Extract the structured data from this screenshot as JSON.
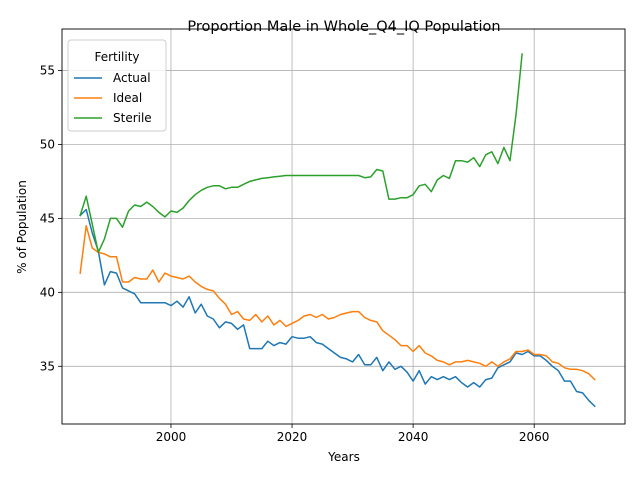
{
  "chart_data": {
    "type": "line",
    "title": "Proportion Male in Whole_Q4_IQ Population",
    "xlabel": "Years",
    "ylabel": "% of Population",
    "xlim": [
      1982,
      2075
    ],
    "ylim": [
      31.1,
      57.8
    ],
    "xticks": [
      2000,
      2020,
      2040,
      2060
    ],
    "yticks": [
      35,
      40,
      45,
      50,
      55
    ],
    "grid": true,
    "legend": {
      "title": "Fertility",
      "placement": "upper left"
    },
    "series": [
      {
        "name": "Actual",
        "color": "#1f77b4",
        "x": [
          1985,
          1986,
          1987,
          1988,
          1989,
          1990,
          1991,
          1992,
          1993,
          1994,
          1995,
          1996,
          1997,
          1998,
          1999,
          2000,
          2001,
          2002,
          2003,
          2004,
          2005,
          2006,
          2007,
          2008,
          2009,
          2010,
          2011,
          2012,
          2013,
          2014,
          2015,
          2016,
          2017,
          2018,
          2019,
          2020,
          2021,
          2022,
          2023,
          2024,
          2025,
          2026,
          2027,
          2028,
          2029,
          2030,
          2031,
          2032,
          2033,
          2034,
          2035,
          2036,
          2037,
          2038,
          2039,
          2040,
          2041,
          2042,
          2043,
          2044,
          2045,
          2046,
          2047,
          2048,
          2049,
          2050,
          2051,
          2052,
          2053,
          2054,
          2055,
          2056,
          2057,
          2058,
          2059,
          2060,
          2061,
          2062,
          2063,
          2064,
          2065,
          2066,
          2067,
          2068,
          2069,
          2070
        ],
        "y": [
          45.2,
          45.6,
          44.0,
          42.8,
          40.5,
          41.4,
          41.3,
          40.3,
          40.1,
          39.9,
          39.3,
          39.3,
          39.3,
          39.3,
          39.3,
          39.1,
          39.4,
          39.0,
          39.7,
          38.6,
          39.2,
          38.4,
          38.2,
          37.6,
          38.0,
          37.9,
          37.5,
          37.8,
          36.2,
          36.2,
          36.2,
          36.7,
          36.4,
          36.6,
          36.5,
          37.0,
          36.9,
          36.9,
          37.0,
          36.6,
          36.5,
          36.2,
          35.9,
          35.6,
          35.5,
          35.3,
          35.8,
          35.1,
          35.1,
          35.6,
          34.7,
          35.3,
          34.8,
          35.0,
          34.6,
          34.0,
          34.7,
          33.8,
          34.3,
          34.1,
          34.3,
          34.1,
          34.3,
          33.9,
          33.6,
          33.9,
          33.6,
          34.1,
          34.2,
          34.9,
          35.1,
          35.3,
          35.9,
          35.8,
          36.0,
          35.7,
          35.7,
          35.4,
          35.0,
          34.7,
          34.0,
          34.0,
          33.3,
          33.2,
          32.7,
          32.3
        ]
      },
      {
        "name": "Ideal",
        "color": "#ff7f0e",
        "x": [
          1985,
          1986,
          1987,
          1988,
          1989,
          1990,
          1991,
          1992,
          1993,
          1994,
          1995,
          1996,
          1997,
          1998,
          1999,
          2000,
          2001,
          2002,
          2003,
          2004,
          2005,
          2006,
          2007,
          2008,
          2009,
          2010,
          2011,
          2012,
          2013,
          2014,
          2015,
          2016,
          2017,
          2018,
          2019,
          2020,
          2021,
          2022,
          2023,
          2024,
          2025,
          2026,
          2027,
          2028,
          2029,
          2030,
          2031,
          2032,
          2033,
          2034,
          2035,
          2036,
          2037,
          2038,
          2039,
          2040,
          2041,
          2042,
          2043,
          2044,
          2045,
          2046,
          2047,
          2048,
          2049,
          2050,
          2051,
          2052,
          2053,
          2054,
          2055,
          2056,
          2057,
          2058,
          2059,
          2060,
          2061,
          2062,
          2063,
          2064,
          2065,
          2066,
          2067,
          2068,
          2069,
          2070
        ],
        "y": [
          41.3,
          44.5,
          43.0,
          42.7,
          42.6,
          42.4,
          42.4,
          40.7,
          40.7,
          41.0,
          40.9,
          40.9,
          41.5,
          40.7,
          41.3,
          41.1,
          41.0,
          40.9,
          41.1,
          40.7,
          40.4,
          40.2,
          40.1,
          39.6,
          39.2,
          38.5,
          38.7,
          38.2,
          38.1,
          38.5,
          38.0,
          38.4,
          37.8,
          38.1,
          37.7,
          37.9,
          38.1,
          38.4,
          38.5,
          38.3,
          38.5,
          38.2,
          38.3,
          38.5,
          38.6,
          38.7,
          38.7,
          38.3,
          38.1,
          38.0,
          37.4,
          37.1,
          36.8,
          36.4,
          36.4,
          36.0,
          36.4,
          35.9,
          35.7,
          35.4,
          35.3,
          35.1,
          35.3,
          35.3,
          35.4,
          35.3,
          35.2,
          35.0,
          35.3,
          35.0,
          35.3,
          35.5,
          36.0,
          36.0,
          36.1,
          35.8,
          35.8,
          35.7,
          35.3,
          35.2,
          34.9,
          34.8,
          34.8,
          34.7,
          34.5,
          34.1
        ]
      },
      {
        "name": "Sterile",
        "color": "#2ca02c",
        "x": [
          1985,
          1986,
          1987,
          1988,
          1989,
          1990,
          1991,
          1992,
          1993,
          1994,
          1995,
          1996,
          1997,
          1998,
          1999,
          2000,
          2001,
          2002,
          2003,
          2004,
          2005,
          2006,
          2007,
          2008,
          2009,
          2010,
          2011,
          2012,
          2013,
          2014,
          2015,
          2016,
          2017,
          2018,
          2019,
          2020,
          2021,
          2022,
          2023,
          2024,
          2025,
          2026,
          2027,
          2028,
          2029,
          2030,
          2031,
          2032,
          2033,
          2034,
          2035,
          2036,
          2037,
          2038,
          2039,
          2040,
          2041,
          2042,
          2043,
          2044,
          2045,
          2046,
          2047,
          2048,
          2049,
          2050,
          2051,
          2052,
          2053,
          2054,
          2055,
          2056,
          2057,
          2058
        ],
        "y": [
          45.2,
          46.5,
          44.6,
          42.7,
          43.6,
          45.0,
          45.0,
          44.4,
          45.5,
          45.9,
          45.8,
          46.1,
          45.8,
          45.4,
          45.1,
          45.5,
          45.4,
          45.7,
          46.2,
          46.6,
          46.9,
          47.1,
          47.2,
          47.2,
          47.0,
          47.1,
          47.1,
          47.3,
          47.5,
          47.6,
          47.7,
          47.75,
          47.8,
          47.85,
          47.9,
          47.9,
          47.9,
          47.9,
          47.9,
          47.9,
          47.9,
          47.9,
          47.9,
          47.9,
          47.9,
          47.9,
          47.9,
          47.75,
          47.8,
          48.3,
          48.2,
          46.3,
          46.3,
          46.4,
          46.4,
          46.6,
          47.2,
          47.3,
          46.8,
          47.6,
          47.9,
          47.7,
          48.9,
          48.9,
          48.8,
          49.1,
          48.5,
          49.3,
          49.5,
          48.7,
          49.8,
          48.9,
          52.0,
          56.1
        ]
      }
    ]
  }
}
